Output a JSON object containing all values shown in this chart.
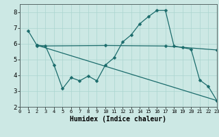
{
  "title": "",
  "xlabel": "Humidex (Indice chaleur)",
  "bg_color": "#cce8e4",
  "grid_color": "#aad4cf",
  "line_color": "#1a6b6b",
  "xlim": [
    0,
    23
  ],
  "ylim": [
    2,
    8.5
  ],
  "xticks": [
    0,
    1,
    2,
    3,
    4,
    5,
    6,
    7,
    8,
    9,
    10,
    11,
    12,
    13,
    14,
    15,
    16,
    17,
    18,
    19,
    20,
    21,
    22,
    23
  ],
  "yticks": [
    2,
    3,
    4,
    5,
    6,
    7,
    8
  ],
  "line1_x": [
    1,
    2,
    3,
    4,
    5,
    6,
    7,
    8,
    9,
    10,
    11,
    12,
    13,
    14,
    15,
    16,
    17,
    18,
    19,
    20,
    21,
    22,
    23
  ],
  "line1_y": [
    6.8,
    5.9,
    5.85,
    4.65,
    3.15,
    3.85,
    3.65,
    3.95,
    3.65,
    4.65,
    5.1,
    6.1,
    6.55,
    7.25,
    7.7,
    8.1,
    8.1,
    5.85,
    5.75,
    5.65,
    3.7,
    3.3,
    2.4
  ],
  "line2_x": [
    2,
    23
  ],
  "line2_y": [
    5.9,
    2.4
  ],
  "line3_x": [
    2,
    10,
    17,
    23
  ],
  "line3_y": [
    5.85,
    5.88,
    5.85,
    5.6
  ],
  "markersize": 2.5,
  "linewidth": 0.9
}
